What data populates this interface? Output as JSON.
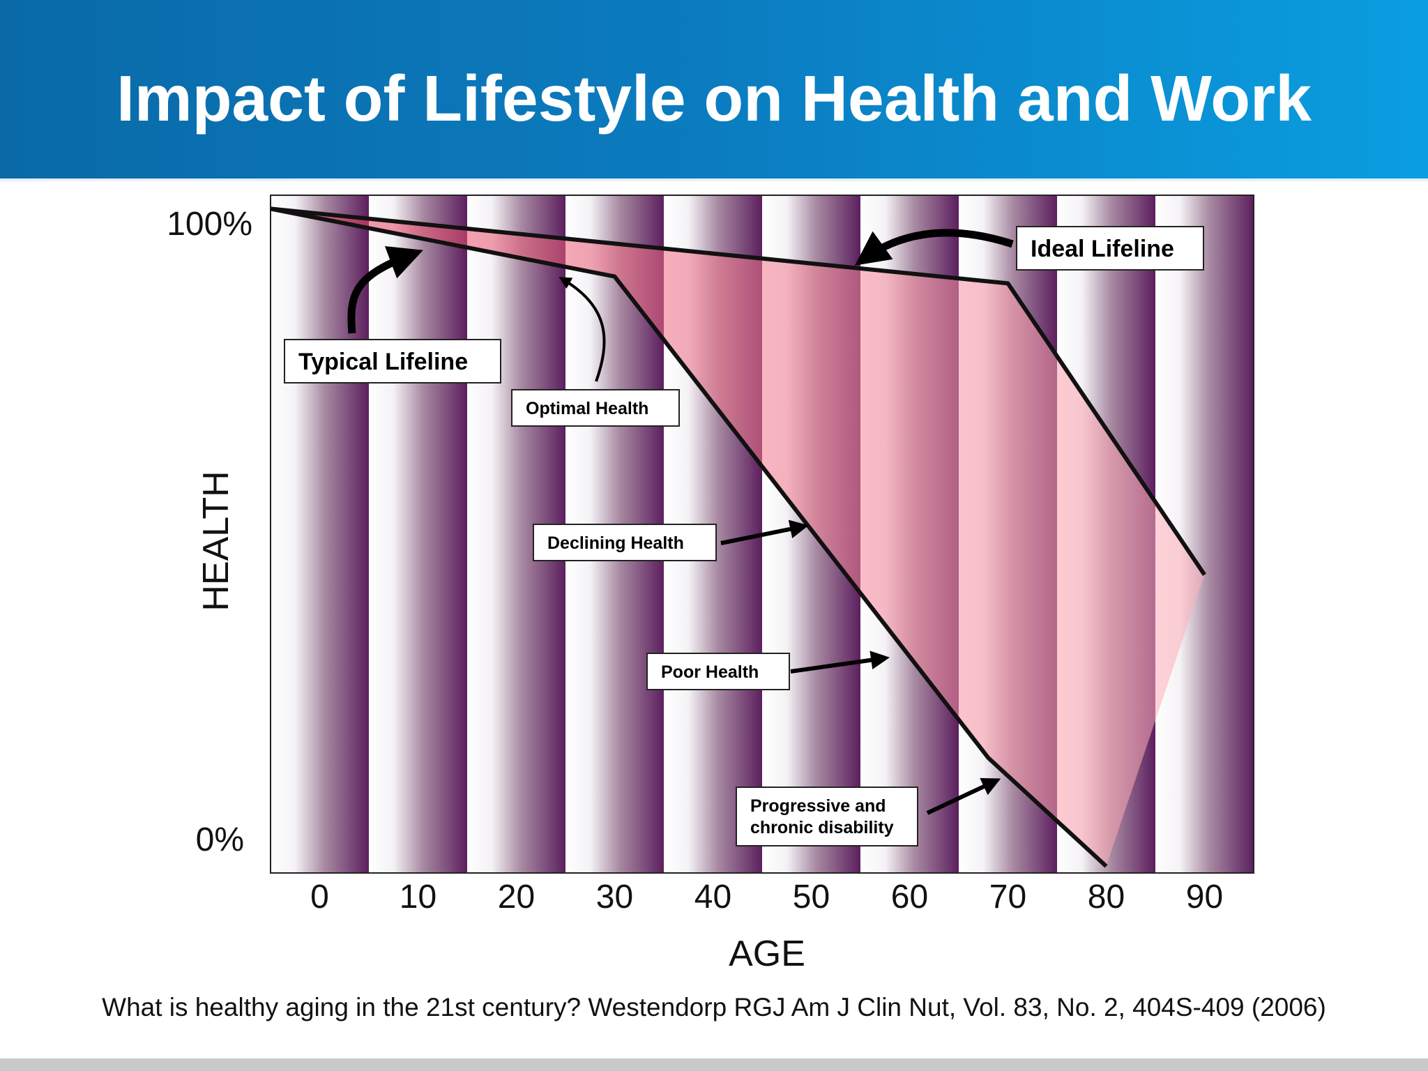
{
  "slide": {
    "title": "Impact of Lifestyle on Health and Work",
    "citation": "What is healthy aging in the 21st century? Westendorp RGJ Am J Clin Nut, Vol. 83, No. 2, 404S-409 (2006)"
  },
  "colors": {
    "header_start": "#0a6aa8",
    "header_end": "#0a9ee0",
    "band_stripe_dark": "#5c1f5e",
    "band_stripe_mid": "#8a2a44",
    "region_fill": "#f2a0aa",
    "line": "#111111"
  },
  "chart_data": {
    "type": "line",
    "xlabel": "AGE",
    "ylabel": "HEALTH",
    "x_ticks": [
      0,
      10,
      20,
      30,
      40,
      50,
      60,
      70,
      80,
      90
    ],
    "y_tick_labels": [
      "100%",
      "0%"
    ],
    "xlim": [
      -5,
      95
    ],
    "ylim": [
      0,
      100
    ],
    "series": [
      {
        "name": "Ideal Lifeline",
        "points": [
          [
            -5,
            98
          ],
          [
            70,
            87
          ],
          [
            90,
            44
          ]
        ]
      },
      {
        "name": "Typical Lifeline",
        "points": [
          [
            -5,
            98
          ],
          [
            30,
            88
          ],
          [
            68,
            17
          ],
          [
            80,
            1
          ]
        ]
      }
    ],
    "shaded_region": "between Ideal Lifeline and Typical Lifeline",
    "annotations": [
      {
        "label": "Ideal Lifeline",
        "points_to": [
          55,
          91
        ]
      },
      {
        "label": "Typical Lifeline",
        "points_to": [
          10,
          92
        ]
      },
      {
        "label": "Optimal Health",
        "points_to": [
          24,
          90
        ]
      },
      {
        "label": "Declining Health",
        "points_to": [
          49,
          51
        ]
      },
      {
        "label": "Poor Health",
        "points_to": [
          57,
          32
        ]
      },
      {
        "label": "Progressive and chronic disability",
        "lines": [
          "Progressive and",
          "chronic disability"
        ],
        "points_to": [
          70,
          14
        ]
      }
    ]
  }
}
